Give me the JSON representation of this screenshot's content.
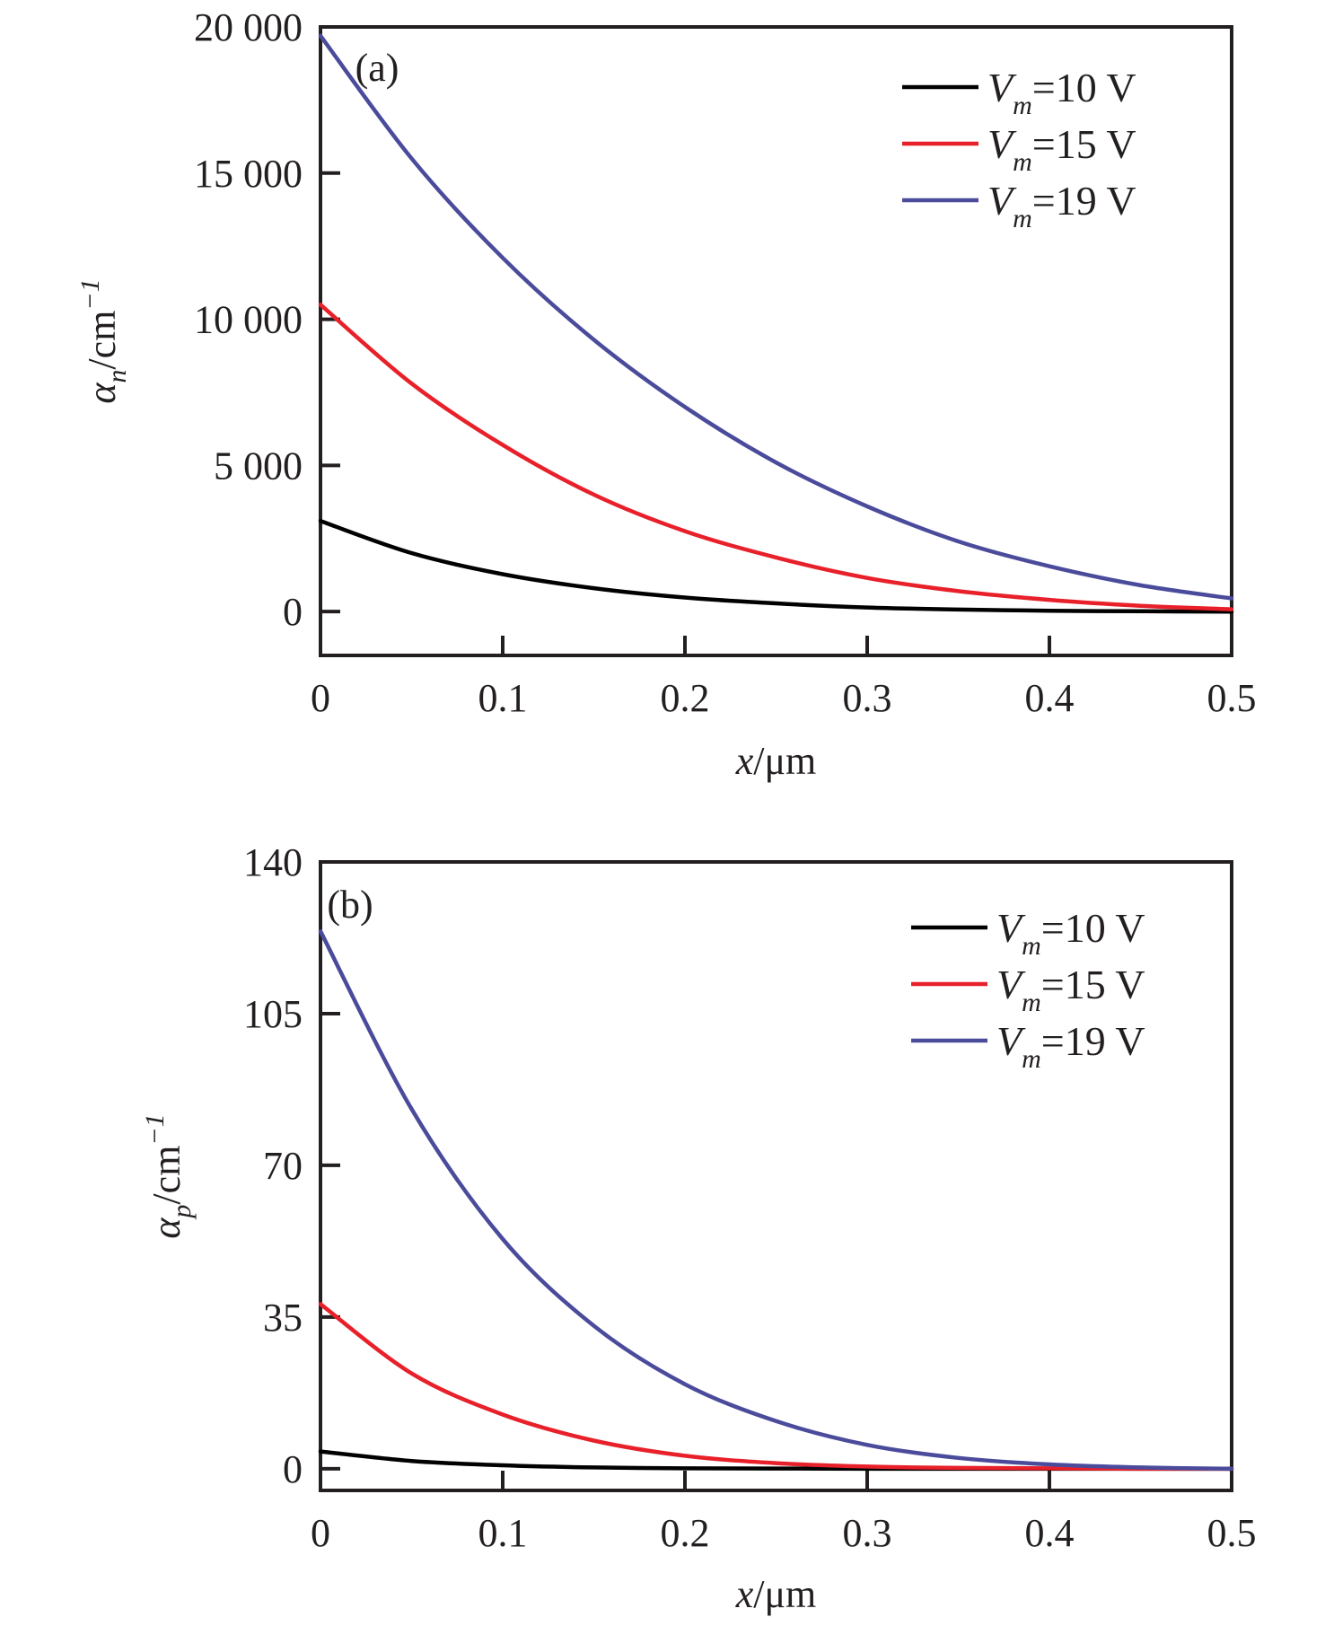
{
  "chart_data": [
    {
      "type": "line",
      "panel_label": "(a)",
      "xlabel": {
        "var": "x",
        "unit": "/μm"
      },
      "ylabel": {
        "var": "α",
        "sub": "n",
        "unit": "/cm",
        "sup": "−1"
      },
      "xlim": [
        0,
        0.5
      ],
      "ylim": [
        -1500,
        20000
      ],
      "x_ticks": [
        0,
        0.1,
        0.2,
        0.3,
        0.4,
        0.5
      ],
      "x_tick_labels": [
        "0",
        "0.1",
        "0.2",
        "0.3",
        "0.4",
        "0.5"
      ],
      "y_ticks": [
        0,
        5000,
        10000,
        15000,
        20000
      ],
      "y_tick_labels": [
        "0",
        "5 000",
        "10 000",
        "15 000",
        "20 000"
      ],
      "grid": false,
      "legend_position": "top-right",
      "x": [
        0,
        0.05,
        0.1,
        0.15,
        0.2,
        0.25,
        0.3,
        0.35,
        0.4,
        0.45,
        0.5
      ],
      "series": [
        {
          "name": "V_m=10 V",
          "legend": {
            "var": "V",
            "sub": "m",
            "text": "=10 V"
          },
          "color": "#000000",
          "values": [
            3100,
            2000,
            1280,
            800,
            480,
            280,
            140,
            70,
            30,
            10,
            0
          ]
        },
        {
          "name": "V_m=15 V",
          "legend": {
            "var": "V",
            "sub": "m",
            "text": "=15 V"
          },
          "color": "#e8202a",
          "values": [
            10500,
            7800,
            5700,
            4000,
            2750,
            1850,
            1150,
            700,
            400,
            200,
            80
          ]
        },
        {
          "name": "V_m=19 V",
          "legend": {
            "var": "V",
            "sub": "m",
            "text": "=19 V"
          },
          "color": "#4b4b9c",
          "values": [
            19700,
            15500,
            12100,
            9300,
            7000,
            5100,
            3600,
            2400,
            1550,
            900,
            450
          ]
        }
      ]
    },
    {
      "type": "line",
      "panel_label": "(b)",
      "xlabel": {
        "var": "x",
        "unit": "/μm"
      },
      "ylabel": {
        "var": "α",
        "sub": "p",
        "unit": "/cm",
        "sup": "−1"
      },
      "xlim": [
        0,
        0.5
      ],
      "ylim": [
        -5,
        140
      ],
      "x_ticks": [
        0,
        0.1,
        0.2,
        0.3,
        0.4,
        0.5
      ],
      "x_tick_labels": [
        "0",
        "0.1",
        "0.2",
        "0.3",
        "0.4",
        "0.5"
      ],
      "y_ticks": [
        0,
        35,
        70,
        105,
        140
      ],
      "y_tick_labels": [
        "0",
        "35",
        "70",
        "105",
        "140"
      ],
      "grid": false,
      "legend_position": "top-right",
      "x": [
        0,
        0.05,
        0.1,
        0.15,
        0.2,
        0.25,
        0.3,
        0.35,
        0.4,
        0.45,
        0.5
      ],
      "series": [
        {
          "name": "V_m=10 V",
          "legend": {
            "var": "V",
            "sub": "m",
            "text": "=10 V"
          },
          "color": "#000000",
          "values": [
            4,
            1.8,
            0.8,
            0.3,
            0.1,
            0.05,
            0,
            0,
            0,
            0,
            0
          ]
        },
        {
          "name": "V_m=15 V",
          "legend": {
            "var": "V",
            "sub": "m",
            "text": "=15 V"
          },
          "color": "#e8202a",
          "values": [
            38,
            22,
            12.5,
            6.5,
            3,
            1.3,
            0.5,
            0.2,
            0.1,
            0,
            0
          ]
        },
        {
          "name": "V_m=19 V",
          "legend": {
            "var": "V",
            "sub": "m",
            "text": "=19 V"
          },
          "color": "#4b4b9c",
          "values": [
            124,
            83,
            53,
            33,
            19.5,
            11,
            5.5,
            2.5,
            1,
            0.3,
            0
          ]
        }
      ]
    }
  ]
}
